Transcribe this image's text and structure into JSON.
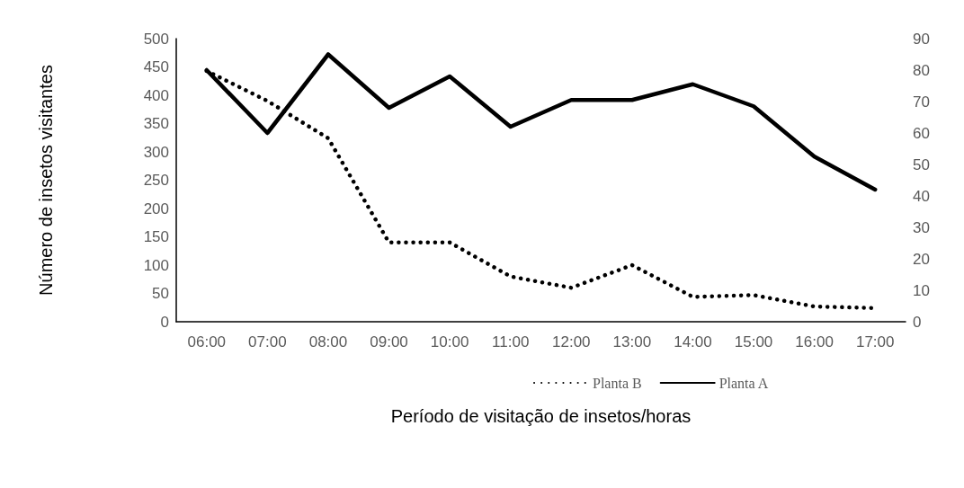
{
  "chart_data": {
    "type": "line",
    "xlabel": "Período de visitação de insetos/horas",
    "ylabel": "Número de insetos visitantes",
    "categories": [
      "06:00",
      "07:00",
      "08:00",
      "09:00",
      "10:00",
      "11:00",
      "12:00",
      "13:00",
      "14:00",
      "15:00",
      "16:00",
      "17:00"
    ],
    "series": [
      {
        "name": "Planta B",
        "color": "#000000",
        "line_style": "dotted",
        "values": [
          443,
          390,
          324,
          140,
          140,
          80,
          60,
          100,
          44,
          47,
          27,
          24
        ]
      },
      {
        "name": "Planta A",
        "color": "#000000",
        "line_style": "solid",
        "axis": "y2",
        "values": [
          80,
          60,
          85,
          68,
          78,
          62,
          70.5,
          70.5,
          75.5,
          68.5,
          52.5,
          42
        ]
      }
    ],
    "ylim": [
      0,
      500
    ],
    "yticks": [
      0,
      50,
      100,
      150,
      200,
      250,
      300,
      350,
      400,
      450,
      500
    ],
    "y2lim": [
      0,
      90
    ],
    "y2ticks": [
      0,
      10,
      20,
      30,
      40,
      50,
      60,
      70,
      80,
      90
    ],
    "grid": false,
    "legend": "bottom",
    "marker": "none"
  }
}
